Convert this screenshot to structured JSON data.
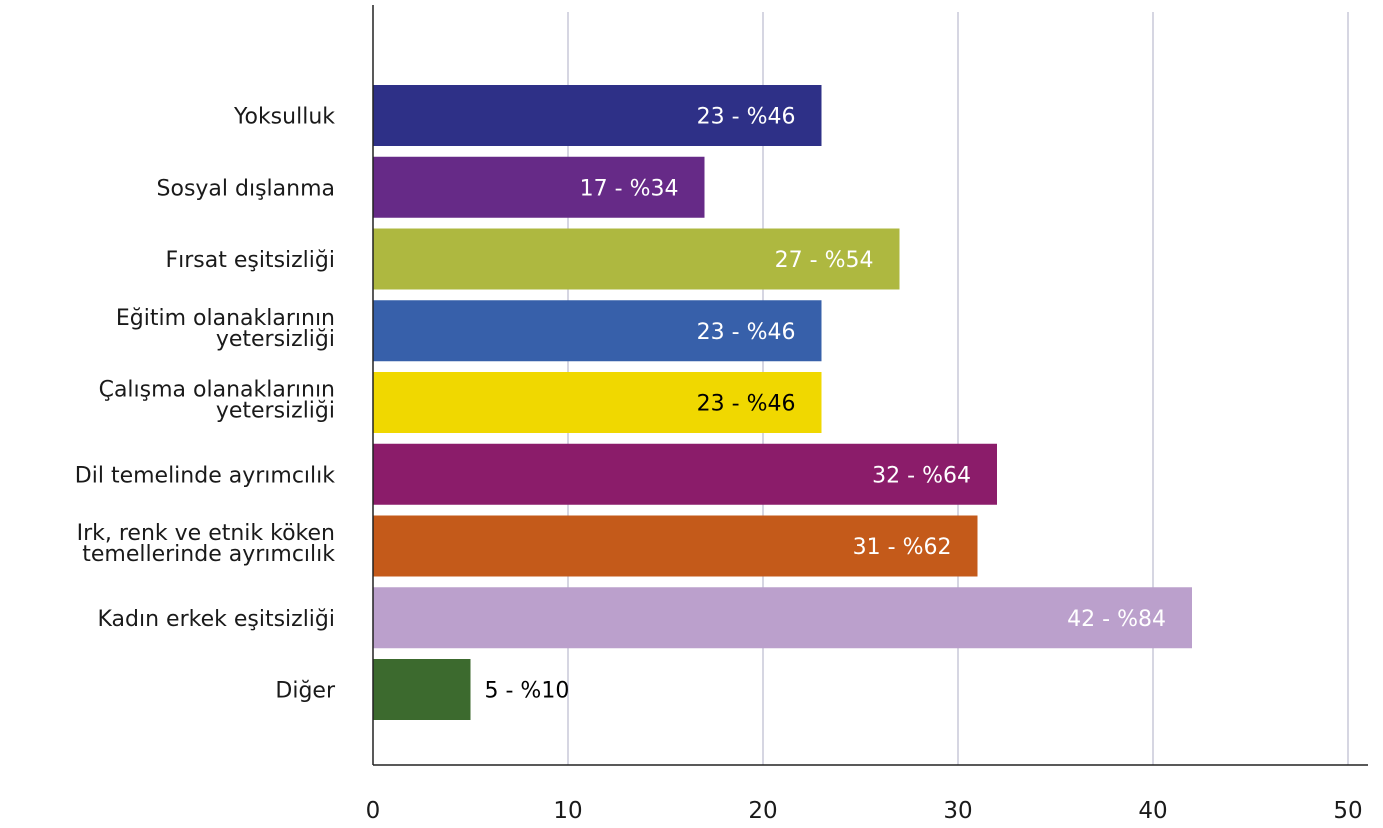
{
  "chart_data": {
    "type": "bar",
    "orientation": "horizontal",
    "categories": [
      [
        "Yoksulluk"
      ],
      [
        "Sosyal dışlanma"
      ],
      [
        "Fırsat eşitsizliği"
      ],
      [
        "Eğitim olanaklarının",
        "yetersizliği"
      ],
      [
        "Çalışma olanaklarının",
        "yetersizliği"
      ],
      [
        "Dil temelinde ayrımcılık"
      ],
      [
        "Irk, renk ve etnik köken",
        "temellerinde ayrımcılık"
      ],
      [
        "Kadın erkek eşitsizliği"
      ],
      [
        "Diğer"
      ]
    ],
    "values": [
      23,
      17,
      27,
      23,
      23,
      32,
      31,
      42,
      5
    ],
    "data_labels": [
      "23 - %46",
      "17 - %34",
      "27 - %54",
      "23 - %46",
      "23 - %46",
      "32 - %64",
      "31 - %62",
      "42 - %84",
      "5 - %10"
    ],
    "colors": [
      "#2e3087",
      "#662a87",
      "#aeb840",
      "#3760aa",
      "#f0d800",
      "#8b1c6a",
      "#c45a1a",
      "#bba0cc",
      "#3c6a2e"
    ],
    "label_colors": [
      "#ffffff",
      "#ffffff",
      "#ffffff",
      "#ffffff",
      "#000000",
      "#ffffff",
      "#ffffff",
      "#ffffff",
      "#000000"
    ],
    "label_outside": [
      false,
      false,
      false,
      false,
      false,
      false,
      false,
      false,
      true
    ],
    "xlim": [
      0,
      50
    ],
    "xticks": [
      0,
      10,
      20,
      30,
      40,
      50
    ],
    "grid": "vertical",
    "gridline_color": "#c8c8d8",
    "title": "",
    "xlabel": "",
    "ylabel": ""
  }
}
